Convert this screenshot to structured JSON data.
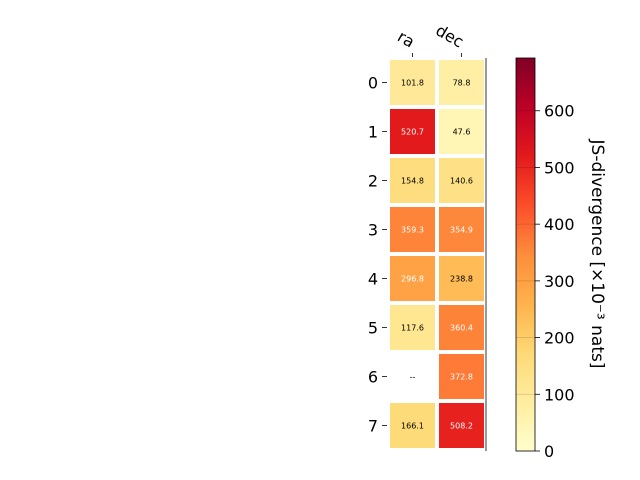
{
  "chart_data": {
    "type": "heatmap",
    "columns": [
      "ra",
      "dec"
    ],
    "rows": [
      "0",
      "1",
      "2",
      "3",
      "4",
      "5",
      "6",
      "7"
    ],
    "values": [
      [
        101.8,
        78.8
      ],
      [
        520.7,
        47.6
      ],
      [
        154.8,
        140.6
      ],
      [
        359.3,
        354.9
      ],
      [
        296.8,
        238.8
      ],
      [
        117.6,
        360.4
      ],
      [
        null,
        372.8
      ],
      [
        166.1,
        508.2
      ]
    ],
    "missing_label": "--",
    "colorbar": {
      "label": "JS-divergence [×10⁻³ nats]",
      "min": 0,
      "max": 693,
      "ticks": [
        0,
        100,
        200,
        300,
        400,
        500,
        600
      ],
      "colormap": "YlOrRd",
      "stops": [
        "#ffffcc",
        "#ffeda0",
        "#fed976",
        "#feb24c",
        "#fd8d3c",
        "#fc4e2a",
        "#e31a1c",
        "#bd0026",
        "#800026"
      ]
    },
    "grid": false,
    "text_colors": {
      "dark": "#000000",
      "light": "#ffffff"
    }
  }
}
